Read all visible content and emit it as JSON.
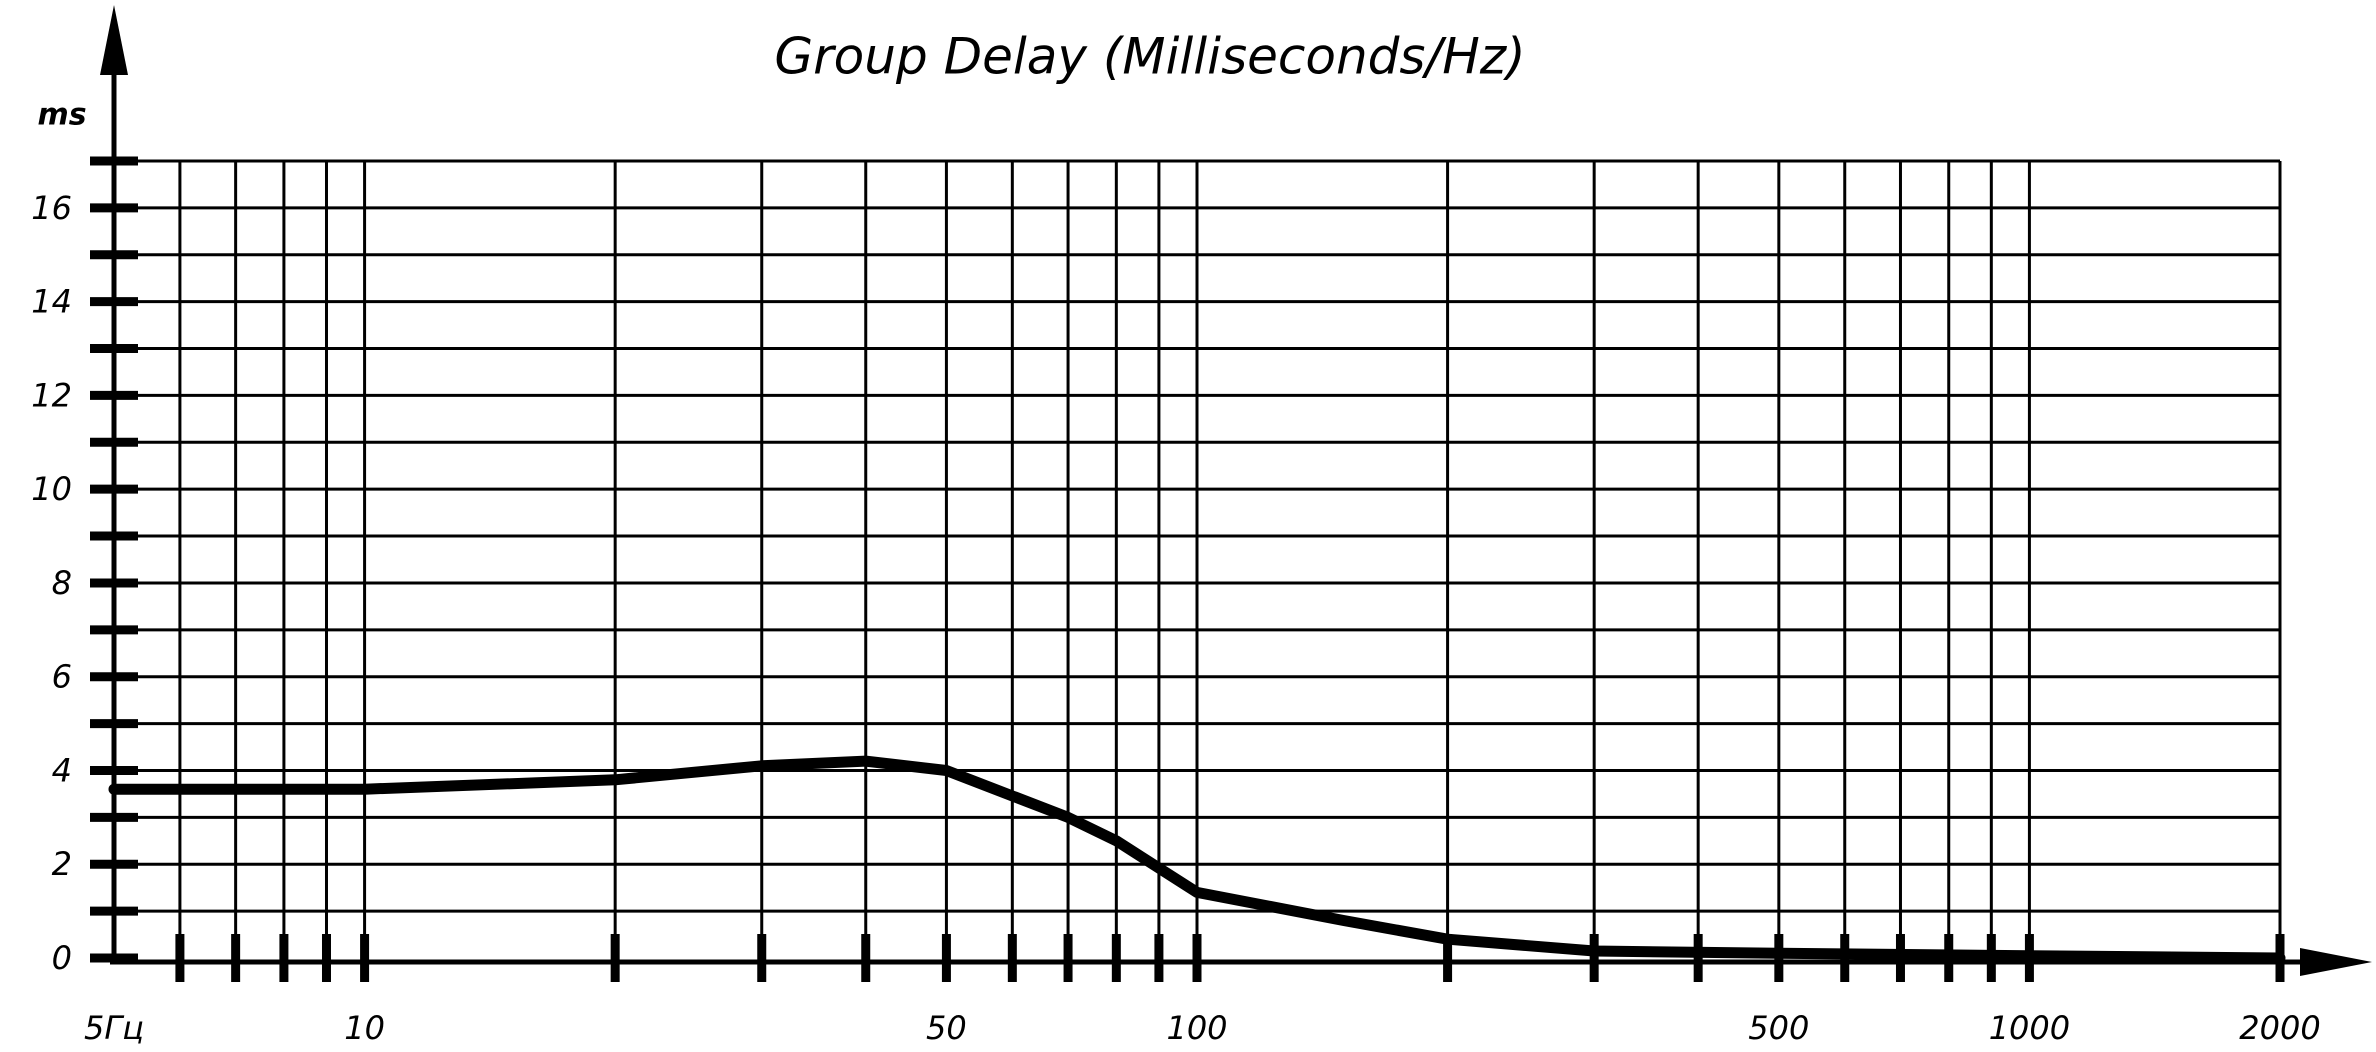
{
  "chart_data": {
    "type": "line",
    "title": "Group Delay (Milliseconds/Hz)",
    "y_label": "ms",
    "xscale": "log",
    "xlim": [
      5,
      2000
    ],
    "ylim": [
      0,
      17
    ],
    "xticks": [
      {
        "value": 5,
        "label": "5Гц"
      },
      10,
      50,
      100,
      500,
      1000,
      2000
    ],
    "xminor": [
      6,
      7,
      8,
      9,
      20,
      30,
      40,
      60,
      70,
      80,
      90,
      200,
      300,
      400,
      600,
      700,
      800,
      900
    ],
    "yticks": [
      0,
      2,
      4,
      6,
      8,
      10,
      12,
      14,
      16
    ],
    "yminor": [
      1,
      3,
      5,
      7,
      9,
      11,
      13,
      15,
      17
    ],
    "grid": true,
    "color": "#000000",
    "x": [
      5,
      10,
      20,
      30,
      40,
      50,
      70,
      80,
      100,
      150,
      200,
      300,
      500,
      1000,
      2000
    ],
    "values": [
      3.6,
      3.6,
      3.8,
      4.1,
      4.2,
      4.0,
      3.0,
      2.5,
      1.4,
      0.8,
      0.4,
      0.15,
      0.1,
      0.05,
      0
    ]
  }
}
